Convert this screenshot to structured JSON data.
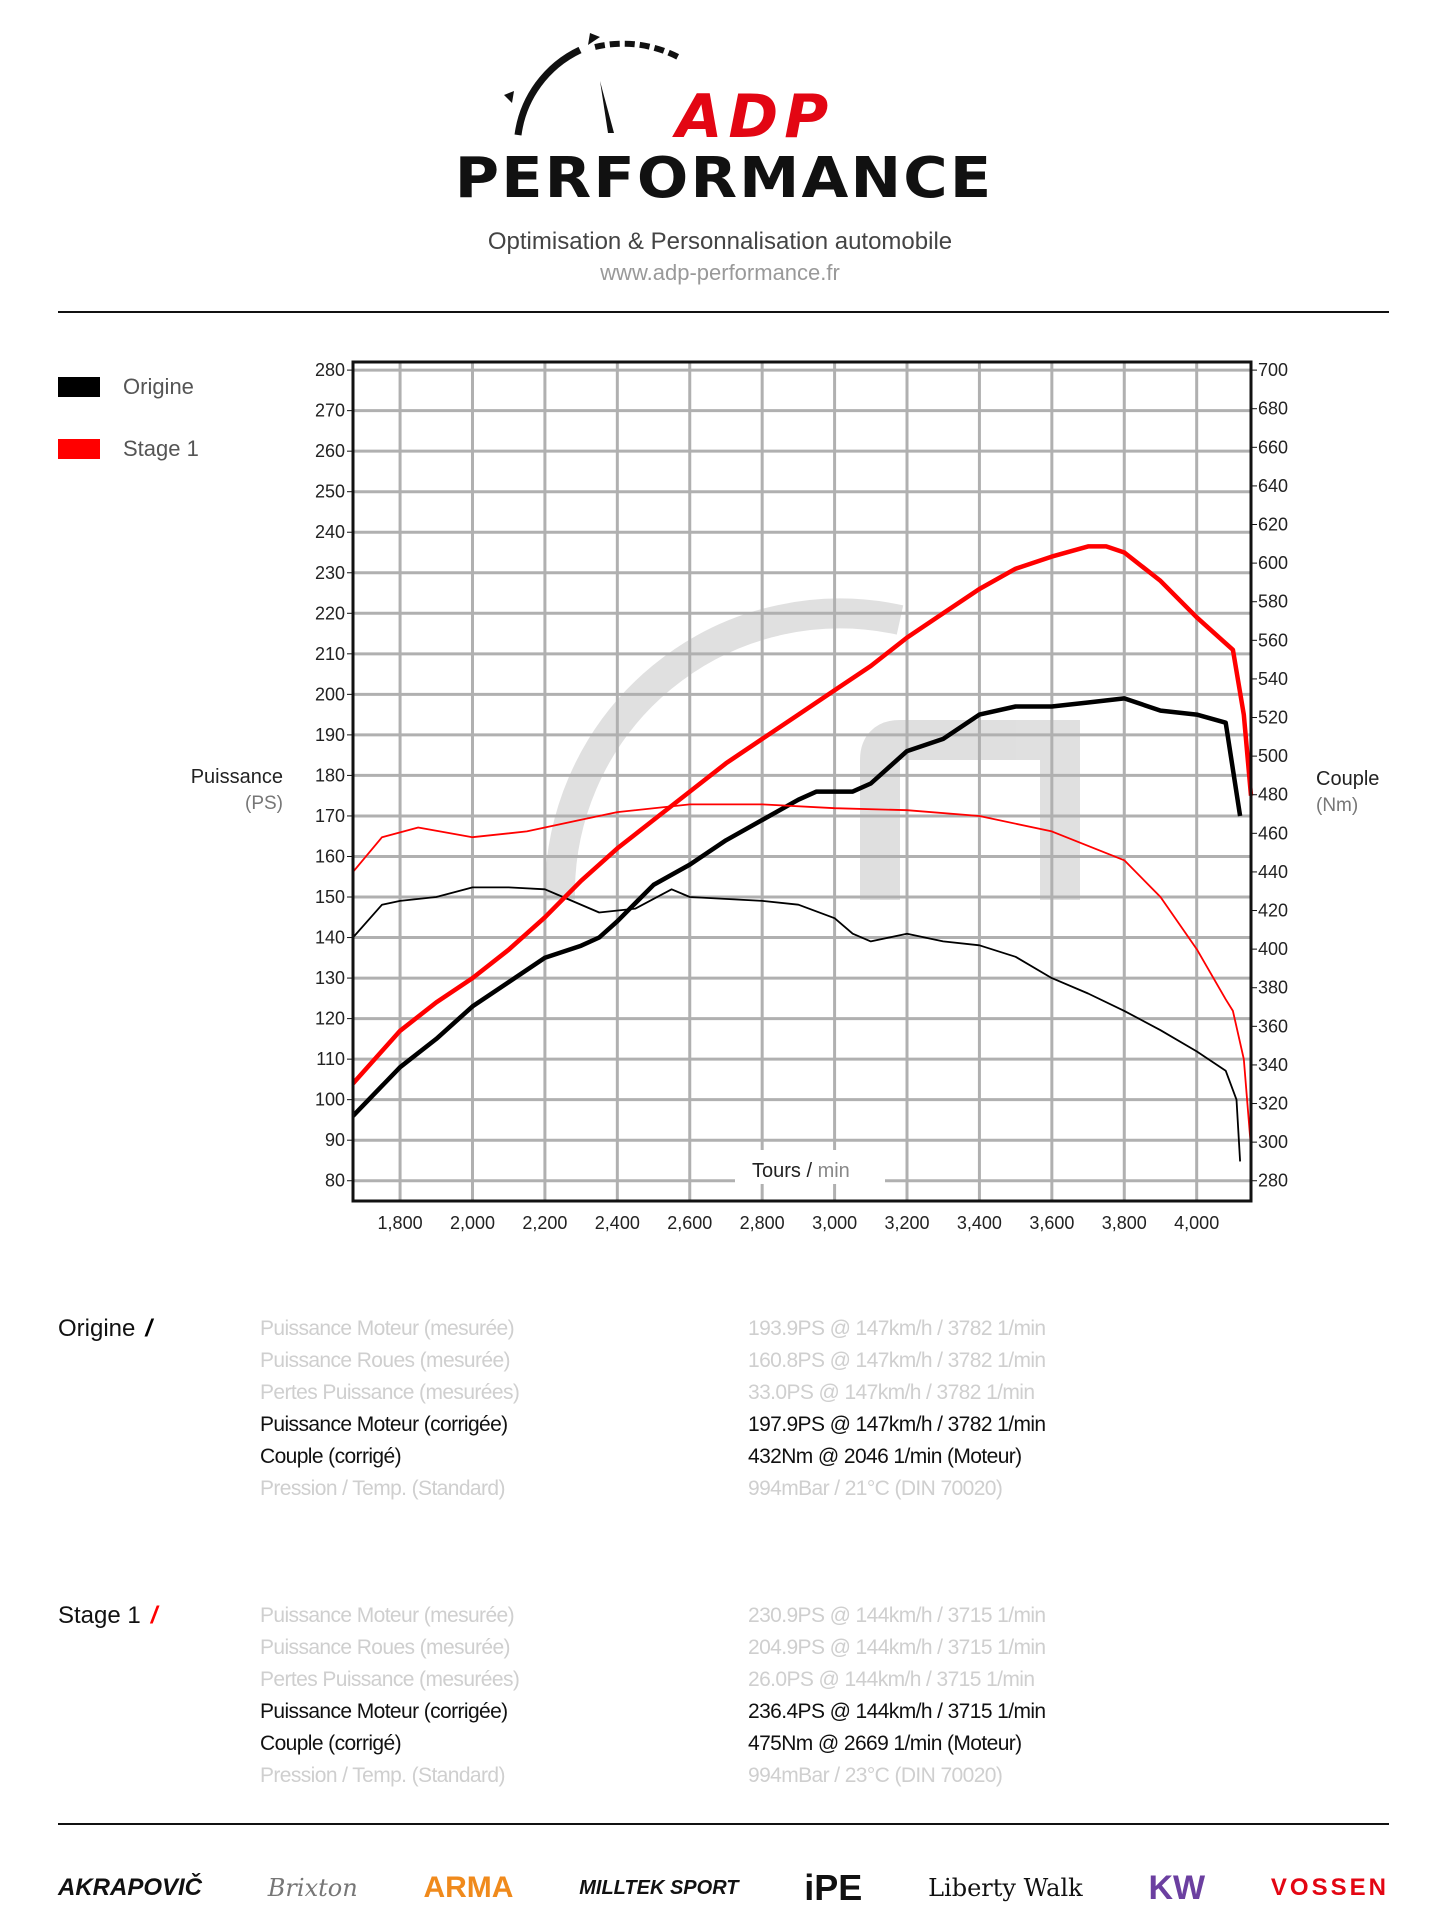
{
  "header": {
    "brand_top": "ADP",
    "brand_bottom": "PERFORMANCE",
    "tagline": "Optimisation & Personnalisation automobile",
    "url": "www.adp-performance.fr"
  },
  "colors": {
    "origine": "#000000",
    "stage1": "#ff0000",
    "grid": "#b5b5b5",
    "muted_text": "#cfcfcf"
  },
  "chart_data": {
    "type": "line",
    "xlabel": "Tours / min",
    "xlabel_main": "Tours",
    "xlabel_sep": " / ",
    "xlabel_unit": "min",
    "ylabel_left": "Puissance",
    "ylabel_left_unit": "(PS)",
    "ylabel_right": "Couple",
    "ylabel_right_unit": "(Nm)",
    "xlim": [
      1670,
      4150
    ],
    "ylim_left": [
      75,
      282
    ],
    "ylim_right": [
      269.5,
      704.2
    ],
    "x_ticks": [
      1800,
      2000,
      2200,
      2400,
      2600,
      2800,
      3000,
      3200,
      3400,
      3600,
      3800,
      4000
    ],
    "x_tick_labels": [
      "1,800",
      "2,000",
      "2,200",
      "2,400",
      "2,600",
      "2,800",
      "3,000",
      "3,200",
      "3,400",
      "3,600",
      "3,800",
      "4,000"
    ],
    "y_left_ticks": [
      80,
      90,
      100,
      110,
      120,
      130,
      140,
      150,
      160,
      170,
      180,
      190,
      200,
      210,
      220,
      230,
      240,
      250,
      260,
      270,
      280
    ],
    "y_right_ticks": [
      280,
      300,
      320,
      340,
      360,
      380,
      400,
      420,
      440,
      460,
      480,
      500,
      520,
      540,
      560,
      580,
      600,
      620,
      640,
      660,
      680,
      700
    ],
    "grid": true,
    "legend": [
      {
        "name": "Origine",
        "color": "#000000"
      },
      {
        "name": "Stage 1",
        "color": "#ff0000"
      }
    ],
    "legend_placement": "top-left",
    "series": [
      {
        "name": "Origine Puissance",
        "axis": "left",
        "unit": "PS",
        "color": "#000000",
        "width": "thick",
        "x": [
          1670,
          1800,
          1900,
          2000,
          2100,
          2200,
          2300,
          2350,
          2400,
          2500,
          2600,
          2700,
          2800,
          2900,
          2950,
          3000,
          3050,
          3100,
          3200,
          3300,
          3400,
          3500,
          3600,
          3700,
          3800,
          3900,
          4000,
          4080,
          4120
        ],
        "y": [
          96,
          108,
          115,
          123,
          129,
          135,
          138,
          140,
          144,
          153,
          158,
          164,
          169,
          174,
          176,
          176,
          176,
          178,
          186,
          189,
          195,
          197,
          197,
          198,
          199,
          196,
          195,
          193,
          170
        ]
      },
      {
        "name": "Origine Couple",
        "axis": "right",
        "unit": "Nm",
        "color": "#000000",
        "width": "thin",
        "x": [
          1670,
          1750,
          1800,
          1900,
          2000,
          2100,
          2200,
          2250,
          2350,
          2450,
          2550,
          2600,
          2800,
          2900,
          3000,
          3050,
          3100,
          3200,
          3300,
          3400,
          3500,
          3600,
          3700,
          3800,
          3900,
          4000,
          4080,
          4110,
          4120
        ],
        "y": [
          406,
          423,
          425,
          427,
          432,
          432,
          431,
          427,
          419,
          421,
          431,
          427,
          425,
          423,
          416,
          408,
          404,
          408,
          404,
          402,
          396,
          385,
          377,
          368,
          358,
          347,
          337,
          322,
          290
        ]
      },
      {
        "name": "Stage 1 Puissance",
        "axis": "left",
        "unit": "PS",
        "color": "#ff0000",
        "width": "thick",
        "x": [
          1670,
          1800,
          1900,
          2000,
          2100,
          2200,
          2300,
          2400,
          2500,
          2600,
          2700,
          2800,
          2900,
          3000,
          3100,
          3200,
          3300,
          3400,
          3500,
          3600,
          3700,
          3750,
          3800,
          3900,
          4000,
          4050,
          4100,
          4130,
          4150
        ],
        "y": [
          104,
          117,
          124,
          130,
          137,
          145,
          154,
          162,
          169,
          176,
          183,
          189,
          195,
          201,
          207,
          214,
          220,
          226,
          231,
          234,
          236.5,
          236.5,
          235,
          228,
          219,
          215,
          211,
          195,
          175
        ]
      },
      {
        "name": "Stage 1 Couple",
        "axis": "right",
        "unit": "Nm",
        "color": "#ff0000",
        "width": "thin",
        "x": [
          1670,
          1750,
          1850,
          2000,
          2150,
          2300,
          2400,
          2600,
          2800,
          3000,
          3200,
          3400,
          3600,
          3800,
          3900,
          4000,
          4080,
          4100,
          4130,
          4150
        ],
        "y": [
          440,
          458,
          463,
          458,
          461,
          467,
          471,
          475,
          475,
          473,
          472,
          469,
          461,
          446,
          427,
          400,
          374,
          368,
          343,
          297
        ]
      }
    ]
  },
  "results": [
    {
      "name": "Origine",
      "rows": [
        {
          "label": "Puissance Moteur (mesurée)",
          "value": "193.9PS @ 147km/h / 3782 1/min",
          "emphasis": false
        },
        {
          "label": "Puissance Roues (mesurée)",
          "value": "160.8PS @ 147km/h / 3782 1/min",
          "emphasis": false
        },
        {
          "label": "Pertes Puissance (mesurées)",
          "value": "33.0PS @ 147km/h / 3782 1/min",
          "emphasis": false
        },
        {
          "label": "Puissance Moteur (corrigée)",
          "value": "197.9PS @ 147km/h / 3782 1/min",
          "emphasis": true
        },
        {
          "label": "Couple (corrigé)",
          "value": "432Nm @ 2046 1/min (Moteur)",
          "emphasis": true
        },
        {
          "label": "Pression / Temp. (Standard)",
          "value": "994mBar / 21°C   (DIN 70020)",
          "emphasis": false
        }
      ]
    },
    {
      "name": "Stage 1",
      "rows": [
        {
          "label": "Puissance Moteur (mesurée)",
          "value": "230.9PS @ 144km/h / 3715 1/min",
          "emphasis": false
        },
        {
          "label": "Puissance Roues (mesurée)",
          "value": "204.9PS @ 144km/h / 3715 1/min",
          "emphasis": false
        },
        {
          "label": "Pertes Puissance (mesurées)",
          "value": "26.0PS @ 144km/h / 3715 1/min",
          "emphasis": false
        },
        {
          "label": "Puissance Moteur (corrigée)",
          "value": "236.4PS @ 144km/h / 3715 1/min",
          "emphasis": true
        },
        {
          "label": "Couple (corrigé)",
          "value": "475Nm @ 2669 1/min (Moteur)",
          "emphasis": true
        },
        {
          "label": "Pression / Temp. (Standard)",
          "value": "994mBar / 23°C   (DIN 70020)",
          "emphasis": false
        }
      ]
    }
  ],
  "partners": [
    "AKRAPOVIČ",
    "Brixton",
    "ARMA",
    "MILLTEK SPORT",
    "iPE",
    "Liberty Walk",
    "KW",
    "VOSSEN"
  ]
}
